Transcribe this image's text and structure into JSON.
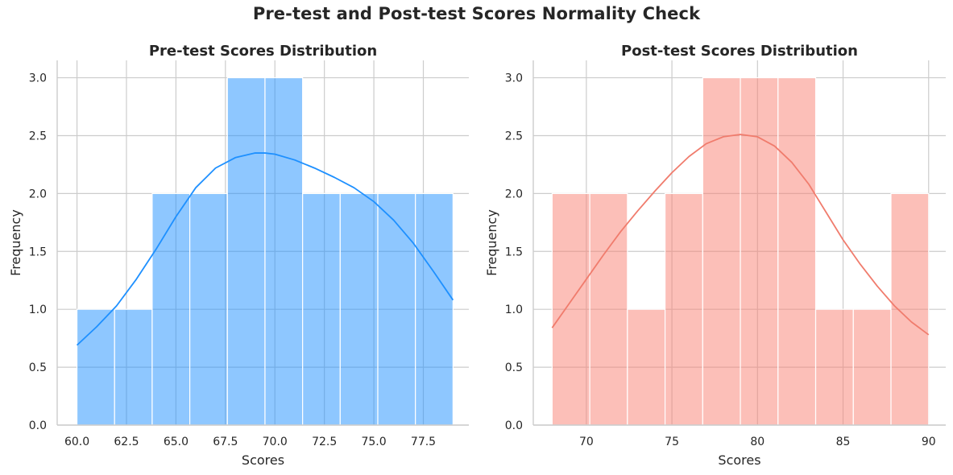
{
  "title": "Pre-test and Post-test Scores Normality Check",
  "chart_data": [
    {
      "type": "bar",
      "title": "Pre-test Scores Distribution",
      "xlabel": "Scores",
      "ylabel": "Frequency",
      "xlim": [
        59.0,
        79.8
      ],
      "ylim": [
        0,
        3.15
      ],
      "xticks": [
        60.0,
        62.5,
        65.0,
        67.5,
        70.0,
        72.5,
        75.0,
        77.5
      ],
      "xtick_labels": [
        "60.0",
        "62.5",
        "65.0",
        "67.5",
        "70.0",
        "72.5",
        "75.0",
        "77.5"
      ],
      "yticks": [
        0.0,
        0.5,
        1.0,
        1.5,
        2.0,
        2.5,
        3.0
      ],
      "ytick_labels": [
        "0.0",
        "0.5",
        "1.0",
        "1.5",
        "2.0",
        "2.5",
        "3.0"
      ],
      "bin_edges": [
        60.0,
        61.9,
        63.8,
        65.7,
        67.6,
        69.5,
        71.4,
        73.3,
        75.2,
        77.1,
        79.0
      ],
      "counts": [
        1,
        1,
        2,
        2,
        3,
        3,
        2,
        2,
        2,
        2
      ],
      "bar_color": "#1e90ff",
      "bar_opacity": 0.5,
      "kde": {
        "x": [
          60.0,
          61.0,
          62.0,
          63.0,
          64.0,
          65.0,
          66.0,
          67.0,
          68.0,
          69.0,
          69.5,
          70.0,
          71.0,
          72.0,
          73.0,
          74.0,
          75.0,
          76.0,
          77.0,
          78.0,
          79.0
        ],
        "y": [
          0.69,
          0.85,
          1.03,
          1.26,
          1.52,
          1.8,
          2.05,
          2.22,
          2.31,
          2.35,
          2.35,
          2.34,
          2.29,
          2.22,
          2.14,
          2.05,
          1.93,
          1.77,
          1.57,
          1.33,
          1.08
        ],
        "color": "#1e90ff"
      },
      "grid": true
    },
    {
      "type": "bar",
      "title": "Post-test Scores Distribution",
      "xlabel": "Scores",
      "ylabel": "Frequency",
      "xlim": [
        66.9,
        91.0
      ],
      "ylim": [
        0,
        3.15
      ],
      "xticks": [
        70,
        75,
        80,
        85,
        90
      ],
      "xtick_labels": [
        "70",
        "75",
        "80",
        "85",
        "90"
      ],
      "yticks": [
        0.0,
        0.5,
        1.0,
        1.5,
        2.0,
        2.5,
        3.0
      ],
      "ytick_labels": [
        "0.0",
        "0.5",
        "1.0",
        "1.5",
        "2.0",
        "2.5",
        "3.0"
      ],
      "bin_edges": [
        68.0,
        70.2,
        72.4,
        74.6,
        76.8,
        79.0,
        81.2,
        83.4,
        85.6,
        87.8,
        90.0
      ],
      "counts": [
        2,
        2,
        1,
        2,
        3,
        3,
        3,
        1,
        1,
        2
      ],
      "bar_color": "#fa8072",
      "bar_opacity": 0.5,
      "kde": {
        "x": [
          68,
          69,
          70,
          71,
          72,
          73,
          74,
          75,
          76,
          77,
          78,
          79,
          80,
          81,
          82,
          83,
          84,
          85,
          86,
          87,
          88,
          89,
          90
        ],
        "y": [
          0.84,
          1.05,
          1.26,
          1.47,
          1.67,
          1.85,
          2.02,
          2.18,
          2.32,
          2.43,
          2.49,
          2.51,
          2.49,
          2.41,
          2.27,
          2.08,
          1.84,
          1.6,
          1.39,
          1.2,
          1.03,
          0.89,
          0.78
        ],
        "color": "#f07c6d"
      },
      "grid": true
    }
  ]
}
